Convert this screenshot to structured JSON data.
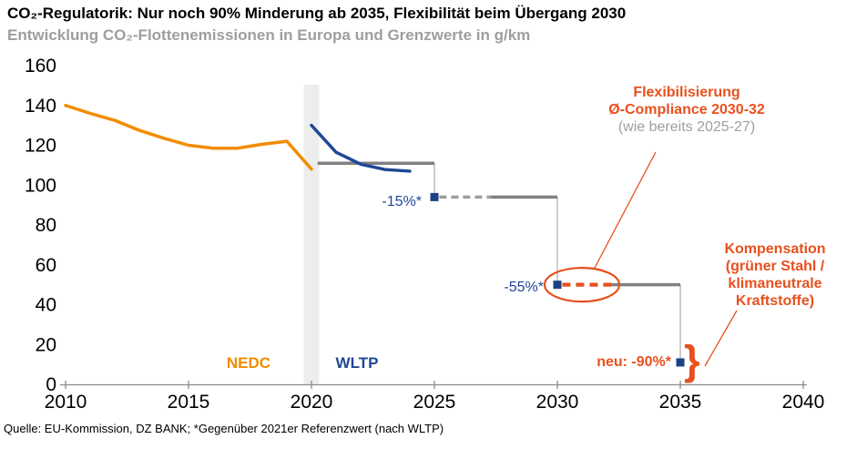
{
  "source_note": "Quelle: EU-Kommission, DZ BANK; *Gegenüber 2021er Referenzwert (nach WLTP)",
  "colors": {
    "orange": "#f28c00",
    "blue": "#1f4796",
    "marker_blue": "#1b4086",
    "red": "#e8501e",
    "gray_line": "#808080",
    "gray_dash": "#9e9e9e",
    "thin_gray": "#ababab",
    "axis": "#8c8c8c",
    "band": "#ededed",
    "subtitle_gray": "#9e9e9e",
    "text": "#000000"
  },
  "chart_data": {
    "type": "line",
    "title": "CO₂-Regulatorik: Nur noch 90% Minderung ab 2035, Flexibilität beim Übergang 2030",
    "subtitle": "Entwicklung CO₂-Flottenemissionen in Europa und Grenzwerte in g/km",
    "unit": "g/km",
    "grid": false,
    "x_axis": {
      "min": 2010,
      "max": 2040,
      "ticks": [
        2010,
        2015,
        2020,
        2025,
        2030,
        2035,
        2040
      ]
    },
    "y_axis": {
      "min": 0,
      "max": 160,
      "ticks": [
        0,
        20,
        40,
        60,
        80,
        100,
        120,
        140,
        160
      ]
    },
    "transition_band_year": 2020,
    "series": [
      {
        "name": "NEDC",
        "color": "orange",
        "x": [
          2010,
          2011,
          2012,
          2013,
          2014,
          2015,
          2016,
          2017,
          2018,
          2019,
          2020
        ],
        "values": [
          140,
          136,
          132.5,
          127.5,
          123.5,
          120,
          118.5,
          118.5,
          120.5,
          122,
          108
        ]
      },
      {
        "name": "WLTP",
        "color": "blue",
        "x": [
          2020,
          2021,
          2022,
          2023,
          2024
        ],
        "values": [
          130,
          116.5,
          110.5,
          107.8,
          107
        ]
      }
    ],
    "limit_segments": [
      {
        "value": 111,
        "from": 2020.25,
        "to": 2025,
        "style": "solid"
      },
      {
        "value": 94,
        "from": 2025.2,
        "to": 2027.3,
        "style": "dashed"
      },
      {
        "value": 94,
        "from": 2027.3,
        "to": 2030,
        "style": "solid"
      },
      {
        "value": 50,
        "from": 2030.2,
        "to": 2032.2,
        "style": "dashed-red"
      },
      {
        "value": 50,
        "from": 2032.2,
        "to": 2035,
        "style": "solid"
      }
    ],
    "step_connectors": [
      {
        "year": 2025,
        "from": 111,
        "to": 94
      },
      {
        "year": 2030,
        "from": 94,
        "to": 50
      },
      {
        "year": 2035,
        "from": 50,
        "to": 11
      }
    ],
    "limit_markers": [
      {
        "year": 2025,
        "value": 94,
        "label": "-15%*"
      },
      {
        "year": 2030,
        "value": 50,
        "label": "-55%*"
      },
      {
        "year": 2035,
        "value": 11,
        "label": "neu: -90%*"
      }
    ],
    "highlight_ellipse": {
      "center_year": 2031,
      "value": 50
    }
  },
  "callouts": {
    "flexibilisierung": {
      "line1": "Flexibilisierung",
      "line2": "Ø-Compliance 2030-32",
      "line3": "(wie bereits 2025-27)"
    },
    "kompensation": {
      "line1": "Kompensation",
      "line2": "(grüner Stahl /",
      "line3": "klimaneutrale",
      "line4": "Kraftstoffe)"
    }
  },
  "decor": {
    "brace": "}"
  }
}
